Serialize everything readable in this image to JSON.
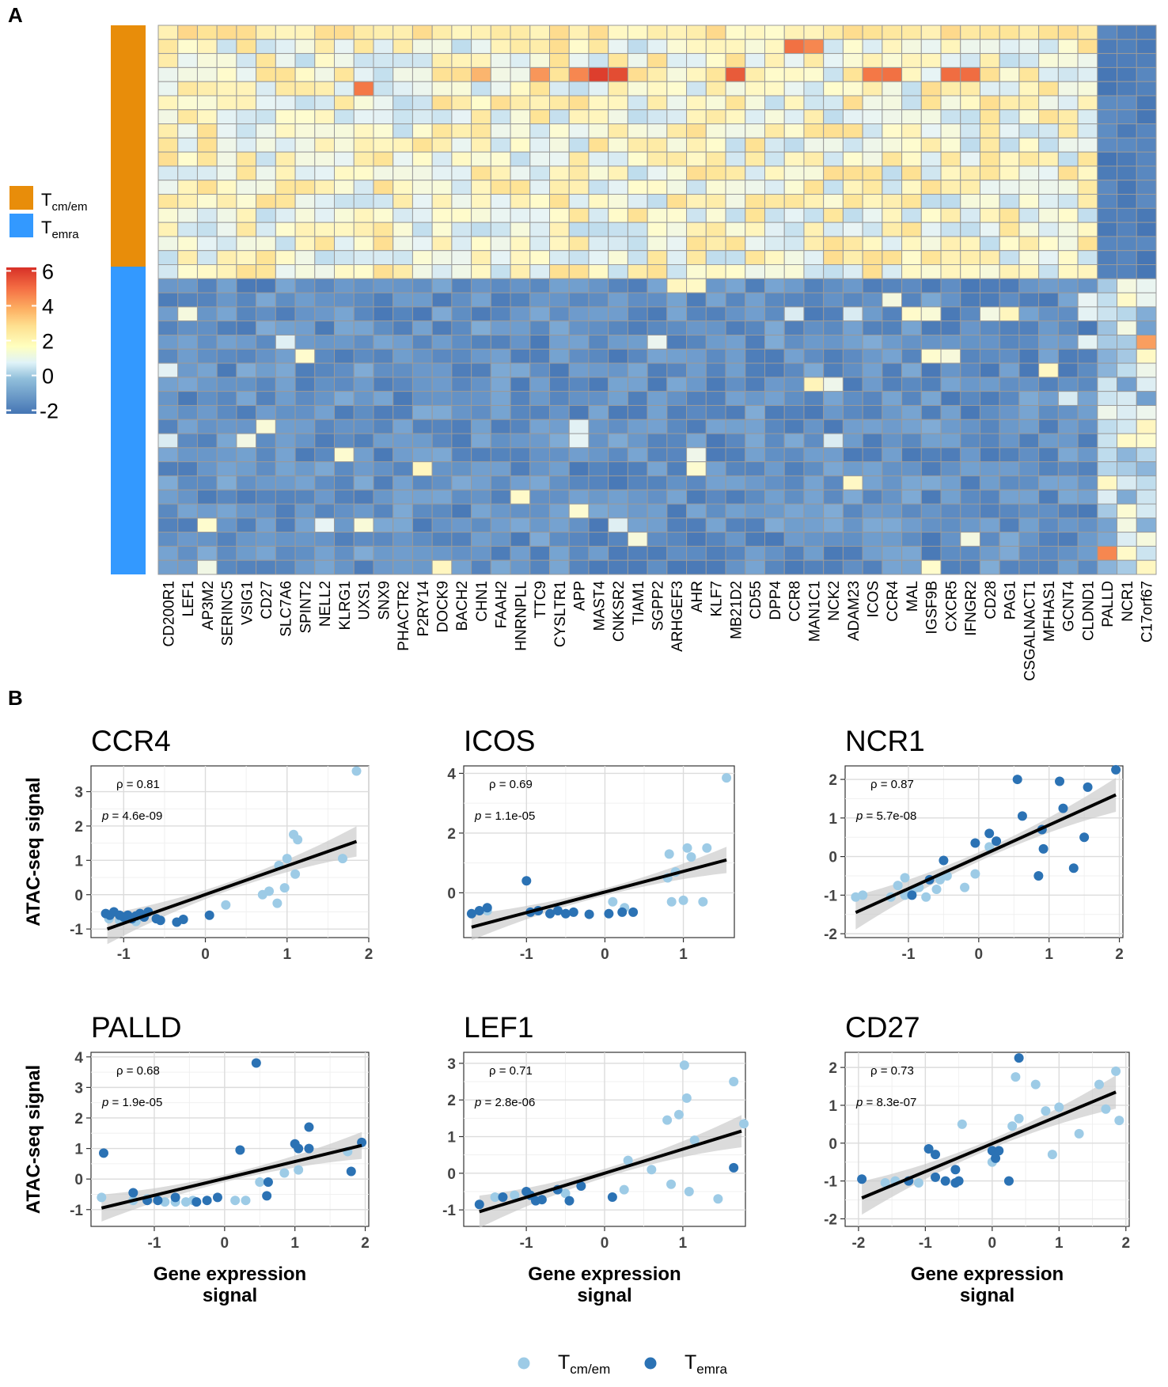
{
  "panel_a_label": "A",
  "panel_b_label": "B",
  "groups": [
    {
      "main": "T",
      "sub": "cm/em",
      "color": "#E88D0A"
    },
    {
      "main": "T",
      "sub": "emra",
      "color": "#3399FF"
    }
  ],
  "colors": {
    "tcm_point": "#9DCBE6",
    "temra_point": "#2B72B4",
    "cell_border": "#9A9A9A"
  },
  "chart_data": [
    {
      "type": "heatmap",
      "title": "",
      "genes": [
        "CD200R1",
        "LEF1",
        "AP3M2",
        "SERINC5",
        "VSIG1",
        "CD27",
        "SLC7A6",
        "SPINT2",
        "NELL2",
        "KLRG1",
        "UXS1",
        "SNX9",
        "PHACTR2",
        "P2RY14",
        "DOCK9",
        "BACH2",
        "CHN1",
        "FAAH2",
        "HNRNPLL",
        "TTC9",
        "CYSLTR1",
        "APP",
        "MAST4",
        "CNKSR2",
        "TIAM1",
        "SGPP2",
        "ARHGEF3",
        "AHR",
        "KLF7",
        "MB21D2",
        "CD55",
        "DPP4",
        "CCR8",
        "MAN1C1",
        "NCK2",
        "ADAM23",
        "ICOS",
        "CCR4",
        "MAL",
        "IGSF9B",
        "CXCR5",
        "IFNGR2",
        "CD28",
        "PAG1",
        "CSGALNACT1",
        "MFHAS1",
        "GCNT4",
        "CLDND1",
        "PALLD",
        "NCR1",
        "C17orf67"
      ],
      "n_rows": 39,
      "row_groups": {
        "cm/em": 18,
        "emra": 21
      },
      "colorbar": {
        "ticks": [
          "6",
          "4",
          "2",
          "0",
          "-2"
        ],
        "min": -2.2,
        "max": 6.2
      },
      "values_note": "z-scored expression; Tcm/em rows mostly 0 to 2.5 with peaks near 5.5 (MAST4, CNKSR2, CCR8, MB21D2, CCR4); Temra rows mostly -2 to -1; last three columns (PALLD, NCR1, C17orf67) inverted"
    },
    {
      "type": "scatter",
      "title": "CCR4",
      "xlabel": "",
      "ylabel": "ATAC-seq signal",
      "rho": "ρ = 0.81",
      "p_label": "p",
      "p_value": " = 4.6e-09",
      "xlim": [
        -1.4,
        2.0
      ],
      "ylim": [
        -1.25,
        3.75
      ],
      "xticks": [
        -1,
        0,
        1,
        2
      ],
      "yticks": [
        -1,
        0,
        1,
        2,
        3
      ],
      "fit": [
        [
          -1.2,
          -1.0
        ],
        [
          1.85,
          1.55
        ]
      ],
      "temra": [
        [
          -1.22,
          -0.55
        ],
        [
          -1.17,
          -0.6
        ],
        [
          -1.12,
          -0.5
        ],
        [
          -1.05,
          -0.6
        ],
        [
          -1.0,
          -0.65
        ],
        [
          -0.95,
          -0.6
        ],
        [
          -0.9,
          -0.7
        ],
        [
          -0.85,
          -0.62
        ],
        [
          -0.8,
          -0.55
        ],
        [
          -0.75,
          -0.65
        ],
        [
          -0.7,
          -0.5
        ],
        [
          -0.6,
          -0.7
        ],
        [
          -0.55,
          -0.75
        ],
        [
          -0.35,
          -0.8
        ],
        [
          -0.27,
          -0.72
        ],
        [
          0.05,
          -0.6
        ]
      ],
      "tcm": [
        [
          -1.18,
          -0.7
        ],
        [
          -1.05,
          -0.75
        ],
        [
          -0.85,
          -0.78
        ],
        [
          0.25,
          -0.3
        ],
        [
          0.7,
          0.0
        ],
        [
          0.78,
          0.1
        ],
        [
          0.88,
          -0.25
        ],
        [
          0.9,
          0.85
        ],
        [
          0.97,
          0.2
        ],
        [
          1.0,
          1.05
        ],
        [
          1.08,
          1.75
        ],
        [
          1.13,
          1.6
        ],
        [
          1.1,
          0.6
        ],
        [
          1.68,
          1.05
        ],
        [
          1.85,
          3.6
        ]
      ]
    },
    {
      "type": "scatter",
      "title": "ICOS",
      "xlabel": "",
      "ylabel": "",
      "rho": "ρ = 0.69",
      "p_label": "p",
      "p_value": " = 1.1e-05",
      "xlim": [
        -1.8,
        1.65
      ],
      "ylim": [
        -1.5,
        4.25
      ],
      "xticks": [
        -1,
        0,
        1
      ],
      "yticks": [
        0,
        2,
        4
      ],
      "fit": [
        [
          -1.7,
          -1.15
        ],
        [
          1.55,
          1.1
        ]
      ],
      "temra": [
        [
          -1.7,
          -0.7
        ],
        [
          -1.6,
          -0.6
        ],
        [
          -1.5,
          -0.5
        ],
        [
          -1.0,
          0.4
        ],
        [
          -0.95,
          -0.65
        ],
        [
          -0.85,
          -0.6
        ],
        [
          -0.7,
          -0.7
        ],
        [
          -0.6,
          -0.6
        ],
        [
          -0.5,
          -0.7
        ],
        [
          -0.4,
          -0.65
        ],
        [
          -0.2,
          -0.72
        ],
        [
          0.05,
          -0.7
        ],
        [
          0.22,
          -0.65
        ],
        [
          0.36,
          -0.65
        ]
      ],
      "tcm": [
        [
          -1.5,
          -0.6
        ],
        [
          0.1,
          -0.3
        ],
        [
          0.25,
          -0.5
        ],
        [
          0.8,
          0.5
        ],
        [
          0.82,
          1.3
        ],
        [
          0.85,
          -0.3
        ],
        [
          0.9,
          0.7
        ],
        [
          1.0,
          -0.25
        ],
        [
          1.05,
          1.5
        ],
        [
          1.1,
          1.2
        ],
        [
          1.25,
          -0.3
        ],
        [
          1.3,
          1.5
        ],
        [
          1.55,
          3.85
        ]
      ]
    },
    {
      "type": "scatter",
      "title": "NCR1",
      "xlabel": "",
      "ylabel": "",
      "rho": "ρ = 0.87",
      "p_label": "p",
      "p_value": " = 5.7e-08",
      "xlim": [
        -1.9,
        2.05
      ],
      "ylim": [
        -2.1,
        2.35
      ],
      "xticks": [
        -1,
        0,
        1,
        2
      ],
      "yticks": [
        -2,
        -1,
        0,
        1,
        2
      ],
      "fit": [
        [
          -1.75,
          -1.45
        ],
        [
          1.95,
          1.6
        ]
      ],
      "temra": [
        [
          -0.95,
          -1.0
        ],
        [
          -0.7,
          -0.6
        ],
        [
          -0.5,
          -0.1
        ],
        [
          -0.05,
          0.35
        ],
        [
          0.15,
          0.6
        ],
        [
          0.25,
          0.4
        ],
        [
          0.55,
          2.0
        ],
        [
          0.62,
          1.05
        ],
        [
          0.85,
          -0.5
        ],
        [
          0.9,
          0.7
        ],
        [
          0.92,
          0.2
        ],
        [
          1.15,
          1.95
        ],
        [
          1.2,
          1.25
        ],
        [
          1.35,
          -0.3
        ],
        [
          1.5,
          0.5
        ],
        [
          1.55,
          1.8
        ],
        [
          1.95,
          2.25
        ]
      ],
      "tcm": [
        [
          -1.75,
          -1.05
        ],
        [
          -1.65,
          -1.0
        ],
        [
          -1.25,
          -1.05
        ],
        [
          -1.15,
          -0.75
        ],
        [
          -1.05,
          -0.55
        ],
        [
          -1.05,
          -1.0
        ],
        [
          -0.95,
          -0.9
        ],
        [
          -0.85,
          -0.8
        ],
        [
          -0.75,
          -1.05
        ],
        [
          -0.6,
          -0.85
        ],
        [
          -0.55,
          -0.6
        ],
        [
          -0.45,
          -0.5
        ],
        [
          -0.2,
          -0.8
        ],
        [
          -0.05,
          -0.45
        ],
        [
          0.15,
          0.25
        ]
      ]
    },
    {
      "type": "scatter",
      "title": "PALLD",
      "xlabel": "Gene expression\nsignal",
      "ylabel": "ATAC-seq signal",
      "rho": "ρ = 0.68",
      "p_label": "p",
      "p_value": " = 1.9e-05",
      "xlim": [
        -1.9,
        2.05
      ],
      "ylim": [
        -1.55,
        4.15
      ],
      "xticks": [
        -1,
        0,
        1,
        2
      ],
      "yticks": [
        -1,
        0,
        1,
        2,
        3,
        4
      ],
      "fit": [
        [
          -1.75,
          -0.95
        ],
        [
          1.95,
          1.1
        ]
      ],
      "temra": [
        [
          -1.72,
          0.85
        ],
        [
          -1.3,
          -0.45
        ],
        [
          -1.1,
          -0.7
        ],
        [
          -0.95,
          -0.7
        ],
        [
          -0.7,
          -0.6
        ],
        [
          -0.4,
          -0.75
        ],
        [
          -0.25,
          -0.7
        ],
        [
          -0.1,
          -0.6
        ],
        [
          0.22,
          0.95
        ],
        [
          0.45,
          3.8
        ],
        [
          0.6,
          -0.55
        ],
        [
          0.62,
          -0.1
        ],
        [
          1.0,
          1.15
        ],
        [
          1.05,
          1.0
        ],
        [
          1.2,
          1.0
        ],
        [
          1.2,
          1.7
        ],
        [
          1.8,
          0.25
        ],
        [
          1.95,
          1.2
        ]
      ],
      "tcm": [
        [
          -1.75,
          -0.6
        ],
        [
          -1.3,
          -0.7
        ],
        [
          -1.1,
          -0.65
        ],
        [
          -0.85,
          -0.75
        ],
        [
          -0.7,
          -0.75
        ],
        [
          -0.55,
          -0.75
        ],
        [
          -0.45,
          -0.7
        ],
        [
          0.15,
          -0.7
        ],
        [
          0.3,
          -0.7
        ],
        [
          0.5,
          -0.1
        ],
        [
          0.85,
          0.2
        ],
        [
          1.05,
          0.3
        ],
        [
          1.75,
          0.9
        ]
      ]
    },
    {
      "type": "scatter",
      "title": "LEF1",
      "xlabel": "Gene expression\nsignal",
      "ylabel": "",
      "rho": "ρ = 0.71",
      "p_label": "p",
      "p_value": " = 2.8e-06",
      "xlim": [
        -1.8,
        1.8
      ],
      "ylim": [
        -1.45,
        3.3
      ],
      "xticks": [
        -1,
        0,
        1
      ],
      "yticks": [
        -1,
        0,
        1,
        2,
        3
      ],
      "fit": [
        [
          -1.6,
          -1.05
        ],
        [
          1.75,
          1.15
        ]
      ],
      "temra": [
        [
          -1.6,
          -0.85
        ],
        [
          -1.3,
          -0.65
        ],
        [
          -1.0,
          -0.5
        ],
        [
          -0.95,
          -0.6
        ],
        [
          -0.88,
          -0.75
        ],
        [
          -0.8,
          -0.72
        ],
        [
          -0.6,
          -0.45
        ],
        [
          -0.45,
          -0.75
        ],
        [
          -0.3,
          -0.35
        ],
        [
          0.1,
          -0.65
        ],
        [
          1.65,
          0.15
        ]
      ],
      "tcm": [
        [
          -1.4,
          -0.65
        ],
        [
          -1.15,
          -0.6
        ],
        [
          -0.5,
          -0.55
        ],
        [
          0.25,
          -0.45
        ],
        [
          0.3,
          0.35
        ],
        [
          0.6,
          0.1
        ],
        [
          0.8,
          1.45
        ],
        [
          0.85,
          -0.3
        ],
        [
          0.95,
          1.6
        ],
        [
          1.02,
          2.95
        ],
        [
          1.05,
          2.05
        ],
        [
          1.08,
          -0.5
        ],
        [
          1.15,
          0.9
        ],
        [
          1.45,
          -0.7
        ],
        [
          1.65,
          2.5
        ],
        [
          1.78,
          1.35
        ]
      ]
    },
    {
      "type": "scatter",
      "title": "CD27",
      "xlabel": "Gene expression\nsignal",
      "ylabel": "",
      "rho": "ρ = 0.73",
      "p_label": "p",
      "p_value": " = 8.3e-07",
      "xlim": [
        -2.2,
        2.05
      ],
      "ylim": [
        -2.2,
        2.4
      ],
      "xticks": [
        -2,
        -1,
        0,
        1,
        2
      ],
      "yticks": [
        -2,
        -1,
        0,
        1,
        2
      ],
      "fit": [
        [
          -1.95,
          -1.45
        ],
        [
          1.85,
          1.35
        ]
      ],
      "temra": [
        [
          -1.95,
          -0.95
        ],
        [
          -1.25,
          -1.0
        ],
        [
          -0.95,
          -0.15
        ],
        [
          -0.85,
          -0.3
        ],
        [
          -0.85,
          -0.9
        ],
        [
          -0.7,
          -1.0
        ],
        [
          -0.55,
          -1.05
        ],
        [
          -0.55,
          -0.7
        ],
        [
          -0.5,
          -1.0
        ],
        [
          0.0,
          -0.2
        ],
        [
          0.05,
          -0.4
        ],
        [
          0.1,
          -0.2
        ],
        [
          0.25,
          -1.0
        ],
        [
          0.4,
          2.25
        ]
      ],
      "tcm": [
        [
          -1.6,
          -1.05
        ],
        [
          -1.45,
          -1.0
        ],
        [
          -1.1,
          -1.05
        ],
        [
          -0.45,
          0.5
        ],
        [
          0.0,
          -0.5
        ],
        [
          0.3,
          0.45
        ],
        [
          0.35,
          1.75
        ],
        [
          0.4,
          0.65
        ],
        [
          0.65,
          1.55
        ],
        [
          0.8,
          0.85
        ],
        [
          0.9,
          -0.3
        ],
        [
          1.0,
          0.95
        ],
        [
          1.3,
          0.25
        ],
        [
          1.6,
          1.55
        ],
        [
          1.7,
          0.9
        ],
        [
          1.85,
          1.9
        ],
        [
          1.9,
          0.6
        ]
      ]
    }
  ]
}
